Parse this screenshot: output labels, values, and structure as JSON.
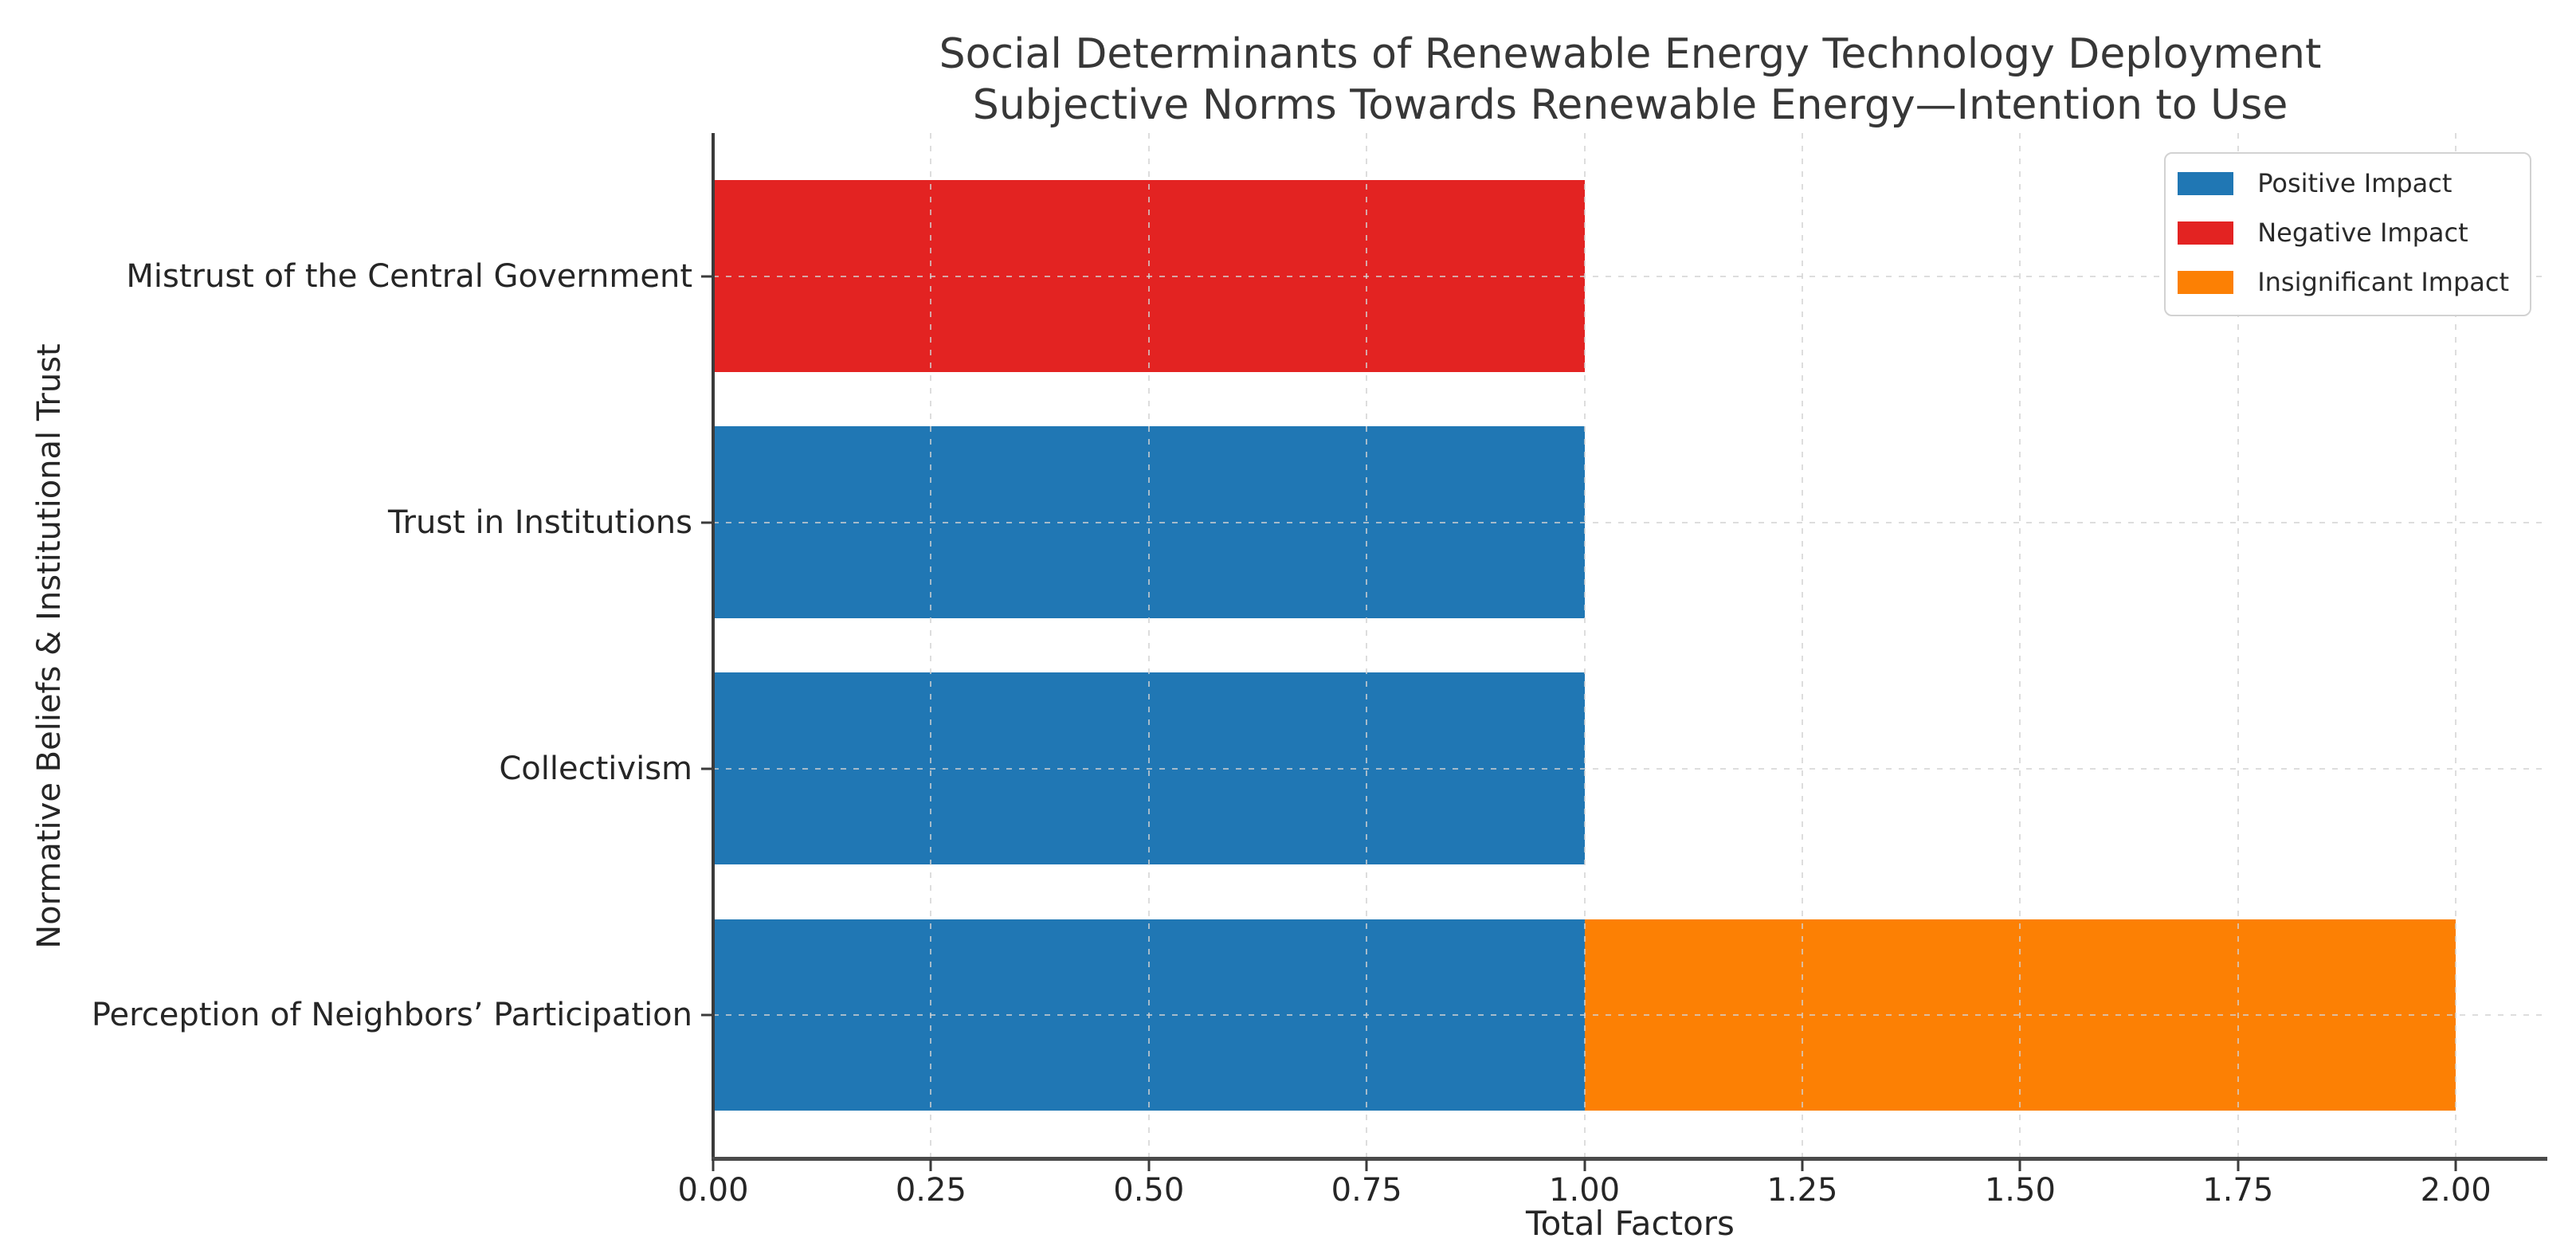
{
  "chart_data": {
    "type": "bar",
    "orientation": "horizontal",
    "stacked": true,
    "title": "Social Determinants of Renewable Energy Technology Deployment",
    "subtitle": "Subjective Norms Towards Renewable Energy—Intention to Use",
    "xlabel": "Total Factors",
    "ylabel": "Normative Beliefs & Institutional Trust",
    "xlim": [
      0,
      2.105
    ],
    "xticks": [
      0,
      0.25,
      0.5,
      0.75,
      1.0,
      1.25,
      1.5,
      1.75,
      2.0
    ],
    "xtick_labels": [
      "0.00",
      "0.25",
      "0.50",
      "0.75",
      "1.00",
      "1.25",
      "1.50",
      "1.75",
      "2.00"
    ],
    "grid": "dashed",
    "categories": [
      "Mistrust of the Central Government",
      "Trust in Institutions",
      "Collectivism",
      "Perception of Neighbors’ Participation"
    ],
    "series": [
      {
        "name": "Positive Impact",
        "color": "#2077b4",
        "values": [
          0,
          1,
          1,
          1
        ]
      },
      {
        "name": "Negative Impact",
        "color": "#e32322",
        "values": [
          1,
          0,
          0,
          0
        ]
      },
      {
        "name": "Insignificant Impact",
        "color": "#fc8004",
        "values": [
          0,
          0,
          0,
          1
        ]
      }
    ],
    "legend": {
      "position": "upper right",
      "entries": [
        "Positive Impact",
        "Negative Impact",
        "Insignificant Impact"
      ]
    }
  },
  "colors": {
    "positive": "#2077b4",
    "negative": "#e32322",
    "insignificant": "#fc8004",
    "grid": "#d2d2d2",
    "spine": "#3b3b3b",
    "text": "#262626",
    "background": "#ffffff"
  }
}
